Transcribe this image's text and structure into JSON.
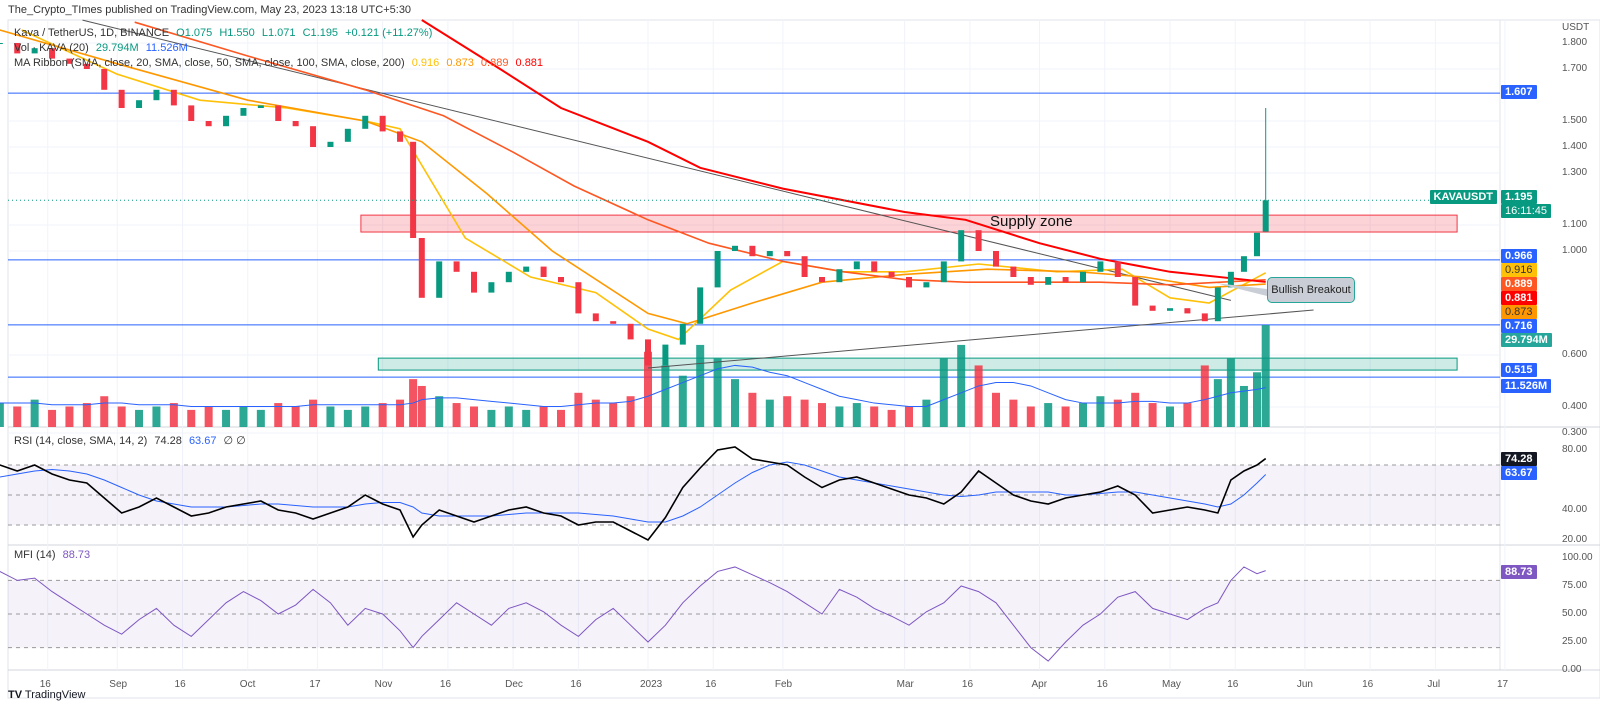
{
  "publisher_line": "The_Crypto_TImes published on TradingView.com, May 23, 2023 13:18 UTC+5:30",
  "legend": {
    "symbol": "Kava / TetherUS, 1D, BINANCE",
    "open": "O1.075",
    "high": "H1.550",
    "low": "L1.071",
    "close": "C1.195",
    "change": "+0.121 (+11.27%)",
    "vol_title": "Vol · KAVA (20)",
    "vol_value": "29.794M",
    "vol_ma": "11.526M",
    "ma_title": "MA Ribbon (SMA, close, 20, SMA, close, 50, SMA, close, 100, SMA, close, 200)",
    "ma_values": [
      "0.916",
      "0.873",
      "0.889",
      "0.881"
    ],
    "rsi_title": "RSI (14, close, SMA, 14, 2)",
    "rsi_value": "74.28",
    "rsi_ma": "63.67",
    "rsi_extra": "∅ ∅",
    "mfi_title": "MFI (14)",
    "mfi_value": "88.73"
  },
  "price_axis": {
    "unit": "USDT",
    "ticks": [
      "1.800",
      "1.700",
      "1.500",
      "1.400",
      "1.300",
      "1.100",
      "1.000",
      "0.600",
      "0.400",
      "0.300"
    ]
  },
  "rsi_axis": [
    "80.00",
    "40.00",
    "20.00"
  ],
  "mfi_axis": [
    "100.00",
    "75.00",
    "50.00",
    "25.00",
    "0.00"
  ],
  "time_axis": [
    [
      "2022-08-16",
      "16"
    ],
    [
      "2022-09-01",
      "Sep"
    ],
    [
      "2022-09-16",
      "16"
    ],
    [
      "2022-10-01",
      "Oct"
    ],
    [
      "2022-10-17",
      "17"
    ],
    [
      "2022-11-01",
      "Nov"
    ],
    [
      "2022-11-16",
      "16"
    ],
    [
      "2022-12-01",
      "Dec"
    ],
    [
      "2022-12-16",
      "16"
    ],
    [
      "2023-01-01",
      "2023"
    ],
    [
      "2023-01-16",
      "16"
    ],
    [
      "2023-02-01",
      "Feb"
    ],
    [
      "2023-03-01",
      "Mar"
    ],
    [
      "2023-03-16",
      "16"
    ],
    [
      "2023-04-01",
      "Apr"
    ],
    [
      "2023-04-16",
      "16"
    ],
    [
      "2023-05-01",
      "May"
    ],
    [
      "2023-05-16",
      "16"
    ],
    [
      "2023-06-01",
      "Jun"
    ],
    [
      "2023-06-16",
      "16"
    ],
    [
      "2023-07-01",
      "Jul"
    ],
    [
      "2023-07-17",
      "17"
    ]
  ],
  "tags": {
    "level_1607": "1.607",
    "symbol": "KAVAUSDT",
    "last": "1.195",
    "countdown": "16:11:45",
    "level_0966": "0.966",
    "ma20": "0.916",
    "ma100": "0.889",
    "ma200": "0.881",
    "ma50": "0.873",
    "level_0716": "0.716",
    "volume": "29.794M",
    "level_0515": "0.515",
    "vol_ma": "11.526M",
    "rsi": "74.28",
    "rsi_ma": "63.67",
    "mfi": "88.73"
  },
  "annotations": {
    "supply_zone": "Supply zone",
    "bullish_breakout": "Bullish Breakout"
  },
  "branding": "TradingView",
  "colors": {
    "up": "#089981",
    "down": "#f23645",
    "ma20": "#ffc107",
    "ma50": "#ff9800",
    "ma100": "#ff5722",
    "ma200": "#ff0000",
    "level": "#2962ff",
    "rsi": "#000000",
    "rsi_ma": "#2962ff",
    "mfi": "#7e57c2",
    "vol_ma": "#2962ff"
  },
  "chart_data": {
    "type": "candlestick",
    "dates": [
      "2022-08-05",
      "2022-08-09",
      "2022-08-13",
      "2022-08-17",
      "2022-08-21",
      "2022-08-25",
      "2022-08-29",
      "2022-09-02",
      "2022-09-06",
      "2022-09-10",
      "2022-09-14",
      "2022-09-18",
      "2022-09-22",
      "2022-09-26",
      "2022-09-30",
      "2022-10-04",
      "2022-10-08",
      "2022-10-12",
      "2022-10-16",
      "2022-10-20",
      "2022-10-24",
      "2022-10-28",
      "2022-11-01",
      "2022-11-05",
      "2022-11-08",
      "2022-11-10",
      "2022-11-14",
      "2022-11-18",
      "2022-11-22",
      "2022-11-26",
      "2022-11-30",
      "2022-12-04",
      "2022-12-08",
      "2022-12-12",
      "2022-12-16",
      "2022-12-20",
      "2022-12-24",
      "2022-12-28",
      "2023-01-01",
      "2023-01-05",
      "2023-01-09",
      "2023-01-13",
      "2023-01-17",
      "2023-01-21",
      "2023-01-25",
      "2023-01-29",
      "2023-02-02",
      "2023-02-06",
      "2023-02-10",
      "2023-02-14",
      "2023-02-18",
      "2023-02-22",
      "2023-02-26",
      "2023-03-02",
      "2023-03-06",
      "2023-03-10",
      "2023-03-14",
      "2023-03-18",
      "2023-03-22",
      "2023-03-26",
      "2023-03-30",
      "2023-04-03",
      "2023-04-07",
      "2023-04-11",
      "2023-04-15",
      "2023-04-19",
      "2023-04-23",
      "2023-04-27",
      "2023-05-01",
      "2023-05-05",
      "2023-05-09",
      "2023-05-12",
      "2023-05-15",
      "2023-05-18",
      "2023-05-21",
      "2023-05-23"
    ],
    "close": [
      1.8,
      1.76,
      1.78,
      1.74,
      1.72,
      1.7,
      1.62,
      1.55,
      1.58,
      1.62,
      1.56,
      1.5,
      1.48,
      1.52,
      1.55,
      1.56,
      1.5,
      1.48,
      1.4,
      1.42,
      1.47,
      1.52,
      1.46,
      1.42,
      1.05,
      0.82,
      0.96,
      0.92,
      0.84,
      0.88,
      0.92,
      0.94,
      0.9,
      0.88,
      0.76,
      0.73,
      0.72,
      0.66,
      0.56,
      0.64,
      0.72,
      0.86,
      1.0,
      1.02,
      0.98,
      1.0,
      0.98,
      0.9,
      0.88,
      0.93,
      0.96,
      0.92,
      0.9,
      0.86,
      0.88,
      0.96,
      1.08,
      1.0,
      0.94,
      0.9,
      0.87,
      0.9,
      0.88,
      0.92,
      0.96,
      0.9,
      0.79,
      0.77,
      0.78,
      0.76,
      0.73,
      0.86,
      0.92,
      0.98,
      1.07,
      1.195
    ],
    "last_candle": {
      "open": 1.075,
      "high": 1.55,
      "low": 1.071,
      "close": 1.195
    },
    "volume_m": [
      7,
      6,
      8,
      5,
      6,
      7,
      9,
      6,
      5,
      6,
      7,
      5,
      6,
      5,
      6,
      5,
      7,
      6,
      8,
      6,
      5,
      6,
      7,
      8,
      14,
      12,
      9,
      7,
      6,
      5,
      6,
      5,
      6,
      5,
      10,
      8,
      7,
      9,
      22,
      18,
      15,
      24,
      20,
      14,
      10,
      8,
      9,
      8,
      7,
      6,
      7,
      6,
      5,
      6,
      8,
      20,
      24,
      18,
      10,
      8,
      6,
      7,
      6,
      7,
      9,
      8,
      10,
      7,
      6,
      7,
      18,
      14,
      20,
      12,
      16,
      29.794
    ],
    "volume_ma_m": [
      7,
      7,
      7,
      6.5,
      6.5,
      6.5,
      7,
      7,
      6.5,
      6.5,
      6.5,
      6,
      6,
      6,
      6,
      6,
      6,
      6,
      6.5,
      6.5,
      6.5,
      6.5,
      6.5,
      6.5,
      7,
      8,
      8.5,
      8.5,
      8,
      7.5,
      7,
      6.5,
      6,
      6,
      6.5,
      7,
      7,
      7.5,
      9,
      11,
      13,
      15,
      17,
      18,
      17.5,
      16,
      15,
      13,
      11,
      9,
      8,
      7,
      6.5,
      6,
      6,
      8,
      10,
      12,
      13,
      13,
      12,
      10,
      8,
      7,
      7,
      7,
      7.5,
      7.5,
      7,
      7,
      8,
      9,
      10,
      10.5,
      11,
      11.526
    ],
    "rsi": [
      70,
      66,
      70,
      64,
      60,
      58,
      48,
      38,
      42,
      48,
      42,
      36,
      38,
      42,
      44,
      46,
      40,
      38,
      34,
      38,
      42,
      50,
      44,
      40,
      22,
      30,
      40,
      36,
      32,
      36,
      40,
      42,
      38,
      36,
      30,
      32,
      32,
      26,
      20,
      35,
      55,
      68,
      80,
      82,
      74,
      72,
      70,
      62,
      55,
      60,
      62,
      58,
      54,
      50,
      48,
      44,
      52,
      66,
      58,
      50,
      46,
      44,
      48,
      50,
      52,
      56,
      50,
      38,
      40,
      42,
      40,
      38,
      60,
      66,
      70,
      74.28
    ],
    "rsi_ma": [
      62,
      64,
      66,
      67,
      66,
      64,
      60,
      55,
      50,
      46,
      44,
      42,
      42,
      42,
      43,
      44,
      44,
      43,
      42,
      42,
      42,
      44,
      45,
      45,
      42,
      38,
      36,
      36,
      36,
      36,
      37,
      38,
      38,
      38,
      38,
      37,
      36,
      34,
      32,
      32,
      36,
      42,
      50,
      58,
      65,
      70,
      72,
      70,
      66,
      62,
      60,
      58,
      56,
      54,
      52,
      50,
      49,
      50,
      52,
      52,
      52,
      52,
      50,
      50,
      51,
      52,
      52,
      50,
      48,
      46,
      44,
      42,
      44,
      50,
      58,
      63.67
    ],
    "mfi": [
      88,
      80,
      82,
      70,
      60,
      50,
      40,
      32,
      45,
      55,
      40,
      30,
      45,
      60,
      70,
      62,
      50,
      58,
      72,
      60,
      40,
      55,
      50,
      35,
      20,
      30,
      45,
      60,
      50,
      40,
      55,
      60,
      52,
      40,
      30,
      45,
      55,
      40,
      25,
      40,
      60,
      75,
      88,
      92,
      85,
      78,
      70,
      60,
      50,
      72,
      65,
      55,
      48,
      40,
      52,
      60,
      75,
      70,
      60,
      40,
      20,
      8,
      25,
      40,
      50,
      65,
      70,
      55,
      50,
      45,
      55,
      60,
      80,
      92,
      86,
      88.73
    ],
    "ma_ribbon": {
      "sma20": [
        [
          "2022-08-10",
          1.85
        ],
        [
          "2022-09-01",
          1.68
        ],
        [
          "2022-09-20",
          1.58
        ],
        [
          "2022-10-10",
          1.55
        ],
        [
          "2022-10-28",
          1.5
        ],
        [
          "2022-11-05",
          1.47
        ],
        [
          "2022-11-20",
          1.05
        ],
        [
          "2022-12-05",
          0.9
        ],
        [
          "2022-12-20",
          0.84
        ],
        [
          "2023-01-01",
          0.7
        ],
        [
          "2023-01-08",
          0.66
        ],
        [
          "2023-01-20",
          0.85
        ],
        [
          "2023-02-01",
          0.96
        ],
        [
          "2023-02-15",
          0.92
        ],
        [
          "2023-03-01",
          0.92
        ],
        [
          "2023-03-18",
          0.95
        ],
        [
          "2023-04-05",
          0.92
        ],
        [
          "2023-04-20",
          0.93
        ],
        [
          "2023-05-01",
          0.82
        ],
        [
          "2023-05-10",
          0.8
        ],
        [
          "2023-05-23",
          0.916
        ]
      ],
      "sma50": [
        [
          "2022-08-05",
          1.85
        ],
        [
          "2022-09-01",
          1.72
        ],
        [
          "2022-10-01",
          1.58
        ],
        [
          "2022-10-28",
          1.5
        ],
        [
          "2022-11-10",
          1.42
        ],
        [
          "2022-11-25",
          1.22
        ],
        [
          "2022-12-10",
          1.0
        ],
        [
          "2023-01-01",
          0.76
        ],
        [
          "2023-01-10",
          0.72
        ],
        [
          "2023-01-25",
          0.8
        ],
        [
          "2023-02-10",
          0.88
        ],
        [
          "2023-03-01",
          0.91
        ],
        [
          "2023-03-20",
          0.93
        ],
        [
          "2023-04-10",
          0.92
        ],
        [
          "2023-04-25",
          0.9
        ],
        [
          "2023-05-10",
          0.86
        ],
        [
          "2023-05-23",
          0.873
        ]
      ],
      "sma100": [
        [
          "2022-09-05",
          1.88
        ],
        [
          "2022-10-01",
          1.75
        ],
        [
          "2022-10-28",
          1.62
        ],
        [
          "2022-11-15",
          1.52
        ],
        [
          "2022-12-01",
          1.38
        ],
        [
          "2022-12-15",
          1.25
        ],
        [
          "2023-01-01",
          1.12
        ],
        [
          "2023-01-15",
          1.03
        ],
        [
          "2023-02-01",
          0.96
        ],
        [
          "2023-02-15",
          0.92
        ],
        [
          "2023-03-01",
          0.89
        ],
        [
          "2023-03-15",
          0.88
        ],
        [
          "2023-04-01",
          0.88
        ],
        [
          "2023-04-15",
          0.88
        ],
        [
          "2023-05-01",
          0.87
        ],
        [
          "2023-05-23",
          0.889
        ]
      ],
      "sma200": [
        [
          "2022-11-10",
          1.89
        ],
        [
          "2022-11-28",
          1.7
        ],
        [
          "2022-12-12",
          1.55
        ],
        [
          "2023-01-01",
          1.42
        ],
        [
          "2023-01-13",
          1.32
        ],
        [
          "2023-02-01",
          1.24
        ],
        [
          "2023-03-01",
          1.15
        ],
        [
          "2023-03-15",
          1.12
        ],
        [
          "2023-04-01",
          1.03
        ],
        [
          "2023-04-15",
          0.97
        ],
        [
          "2023-05-01",
          0.92
        ],
        [
          "2023-05-23",
          0.881
        ]
      ]
    },
    "horizontal_levels": [
      1.607,
      0.966,
      0.716,
      0.515
    ],
    "supply_zone": {
      "from": "2022-10-27",
      "to": "2023-07-06",
      "top": 1.138,
      "bottom": 1.073
    },
    "demand_zone": {
      "from": "2022-10-31",
      "to": "2023-07-06",
      "top": 0.588,
      "bottom": 0.542
    },
    "trendlines": [
      [
        [
          "2022-08-24",
          1.888
        ],
        [
          "2023-05-15",
          0.81
        ]
      ],
      [
        [
          "2023-01-01",
          0.55
        ],
        [
          "2023-06-03",
          0.773
        ]
      ]
    ],
    "ylim": [
      0.3,
      1.85
    ],
    "rsi_bands": [
      70,
      50,
      30
    ],
    "mfi_bands": [
      80,
      50,
      20
    ]
  }
}
